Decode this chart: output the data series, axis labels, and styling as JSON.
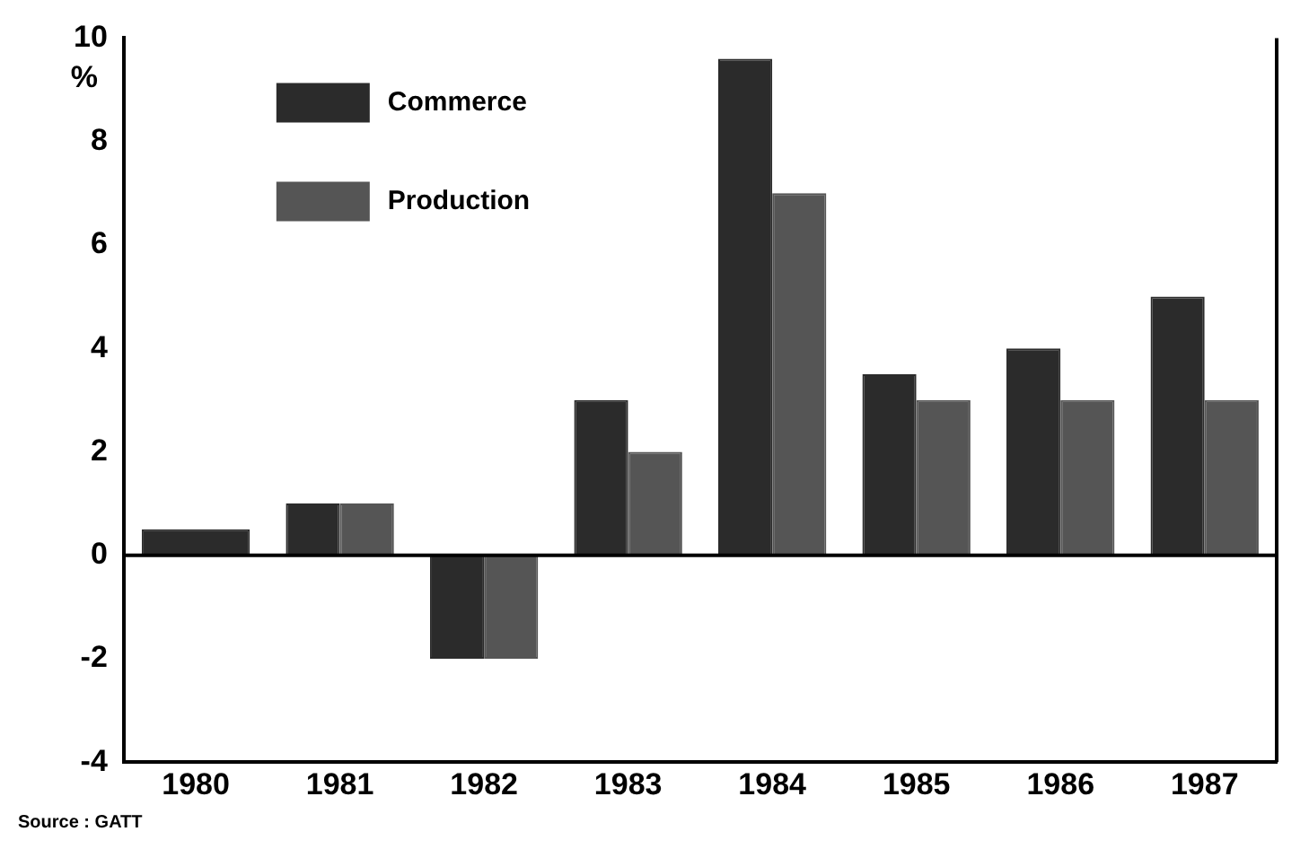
{
  "chart_data": {
    "type": "bar",
    "ylabel": "%",
    "categories": [
      "1980",
      "1981",
      "1982",
      "1983",
      "1984",
      "1985",
      "1986",
      "1987"
    ],
    "series": [
      {
        "name": "Commerce",
        "color": "#2b2b2b",
        "values": [
          0.5,
          1,
          -2,
          3,
          9.6,
          3.5,
          4,
          5
        ]
      },
      {
        "name": "Production",
        "color": "#555555",
        "values": [
          null,
          1,
          -2,
          2,
          7,
          3,
          3,
          3
        ]
      }
    ],
    "ylim": [
      -4,
      10
    ],
    "yticks": [
      -4,
      -2,
      0,
      2,
      4,
      6,
      8,
      10
    ],
    "grid": false,
    "legend": "top left",
    "ref_lines": [
      {
        "axis": "y",
        "value": 0
      }
    ],
    "annotations": [
      "Source : GATT"
    ]
  }
}
